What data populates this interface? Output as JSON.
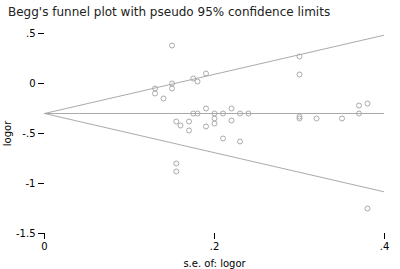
{
  "chart_data": {
    "type": "scatter",
    "title": "Begg's funnel plot with pseudo 95% confidence limits",
    "x_label": "s.e. of: logor",
    "y_label": "logor",
    "xlim": [
      0,
      0.4
    ],
    "ylim": [
      -1.5,
      0.5
    ],
    "xticks": [
      0,
      {
        "value": 0.2,
        "label": ".2"
      },
      {
        "value": 0.4,
        "label": ".4"
      }
    ],
    "yticks": [
      -1.5,
      -1,
      {
        "value": -0.5,
        "label": "-.5"
      },
      0,
      {
        "value": 0.5,
        "label": ".5"
      }
    ],
    "grid": false,
    "series": [
      {
        "type": "scatter",
        "color": "#aaaaaa",
        "marker": "hollow",
        "x": [
          0.13,
          0.13,
          0.14,
          0.15,
          0.15,
          0.155,
          0.16,
          0.17,
          0.17,
          0.175,
          0.18,
          0.175,
          0.18,
          0.19,
          0.19,
          0.19,
          0.2,
          0.2,
          0.2,
          0.21,
          0.21,
          0.22,
          0.22,
          0.23,
          0.23,
          0.24,
          0.15,
          0.155,
          0.155,
          0.3,
          0.3,
          0.3,
          0.3,
          0.32,
          0.35,
          0.37,
          0.37,
          0.38,
          0.38
        ],
        "values": [
          -0.05,
          -0.1,
          -0.15,
          0.0,
          -0.05,
          -0.38,
          -0.42,
          -0.38,
          -0.47,
          -0.3,
          -0.3,
          0.05,
          0.02,
          -0.25,
          -0.43,
          0.1,
          -0.3,
          -0.35,
          -0.4,
          -0.3,
          -0.55,
          -0.25,
          -0.37,
          -0.3,
          -0.58,
          -0.3,
          0.38,
          -0.8,
          -0.88,
          0.27,
          0.09,
          -0.33,
          -0.35,
          -0.35,
          -0.35,
          -0.3,
          -0.22,
          -0.2,
          -1.25
        ]
      },
      {
        "type": "line",
        "color": "#aaaaaa",
        "x": [
          0,
          0.4
        ],
        "values": [
          -0.3,
          -0.3
        ]
      },
      {
        "type": "line",
        "color": "#aaaaaa",
        "x": [
          0,
          0.4
        ],
        "values": [
          -0.3,
          0.484
        ]
      },
      {
        "type": "line",
        "color": "#aaaaaa",
        "x": [
          0,
          0.4
        ],
        "values": [
          -0.3,
          -1.084
        ]
      }
    ]
  }
}
